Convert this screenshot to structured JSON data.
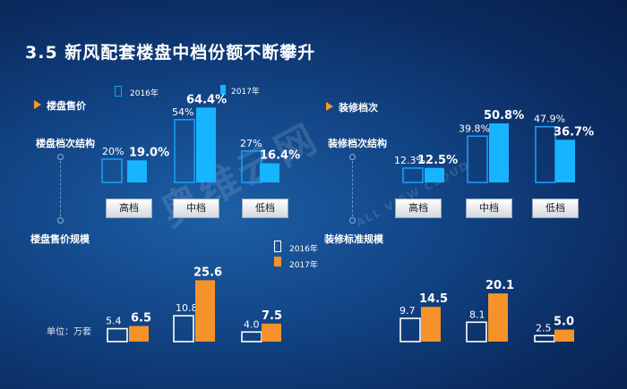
{
  "title": "3.5  新风配套楼盘中档份额不断攀升",
  "left_section": {
    "header": "楼盘售价",
    "struct_label": "楼盘档次结构",
    "scale_label": "楼盘售价规模",
    "unit_label": "单位：万套"
  },
  "right_section": {
    "header": "装修档次",
    "struct_label": "装修档次结构",
    "scale_label": "装修标准规模"
  },
  "legend_top": {
    "label_2016": "2016年",
    "label_2017": "2017年"
  },
  "legend_bottom": {
    "label_2016": "2016年",
    "label_2017": "2017年"
  },
  "watermark": {
    "text": "奥维云网",
    "subtext": "ALL VIEW CLOUD"
  },
  "colors": {
    "share_2016_outline": "#1a9cf5",
    "share_2017_fill": "#17b4ff",
    "scale_2016_outline": "#ffffff",
    "scale_2017_fill": "#f6922a",
    "header_arrow": "#f39a2e"
  },
  "chart_data": [
    {
      "type": "bar",
      "group": "楼盘档次结构",
      "categories": [
        "高档",
        "中档",
        "低档"
      ],
      "series": [
        {
          "name": "2016年",
          "values": [
            20,
            54,
            27
          ],
          "labels": [
            "20%",
            "54%",
            "27%"
          ]
        },
        {
          "name": "2017年",
          "values": [
            19.0,
            64.4,
            16.4
          ],
          "labels": [
            "19.0%",
            "64.4%",
            "16.4%"
          ]
        }
      ],
      "unit": "%"
    },
    {
      "type": "bar",
      "group": "装修档次结构",
      "categories": [
        "高档",
        "中档",
        "低档"
      ],
      "series": [
        {
          "name": "2016年",
          "values": [
            12.3,
            39.8,
            47.9
          ],
          "labels": [
            "12.3%",
            "39.8%",
            "47.9%"
          ]
        },
        {
          "name": "2017年",
          "values": [
            12.5,
            50.8,
            36.7
          ],
          "labels": [
            "12.5%",
            "50.8%",
            "36.7%"
          ]
        }
      ],
      "unit": "%"
    },
    {
      "type": "bar",
      "group": "楼盘售价规模",
      "categories": [
        "高档",
        "中档",
        "低档"
      ],
      "series": [
        {
          "name": "2016年",
          "values": [
            5.4,
            10.8,
            4.0
          ],
          "labels": [
            "5.4",
            "10.8",
            "4.0"
          ]
        },
        {
          "name": "2017年",
          "values": [
            6.5,
            25.6,
            7.5
          ],
          "labels": [
            "6.5",
            "25.6",
            "7.5"
          ]
        }
      ],
      "unit": "万套"
    },
    {
      "type": "bar",
      "group": "装修标准规模",
      "categories": [
        "高档",
        "中档",
        "低档"
      ],
      "series": [
        {
          "name": "2016年",
          "values": [
            9.7,
            8.1,
            2.5
          ],
          "labels": [
            "9.7",
            "8.1",
            "2.5"
          ]
        },
        {
          "name": "2017年",
          "values": [
            14.5,
            20.1,
            5.0
          ],
          "labels": [
            "14.5",
            "20.1",
            "5.0"
          ]
        }
      ],
      "unit": "万套"
    }
  ]
}
